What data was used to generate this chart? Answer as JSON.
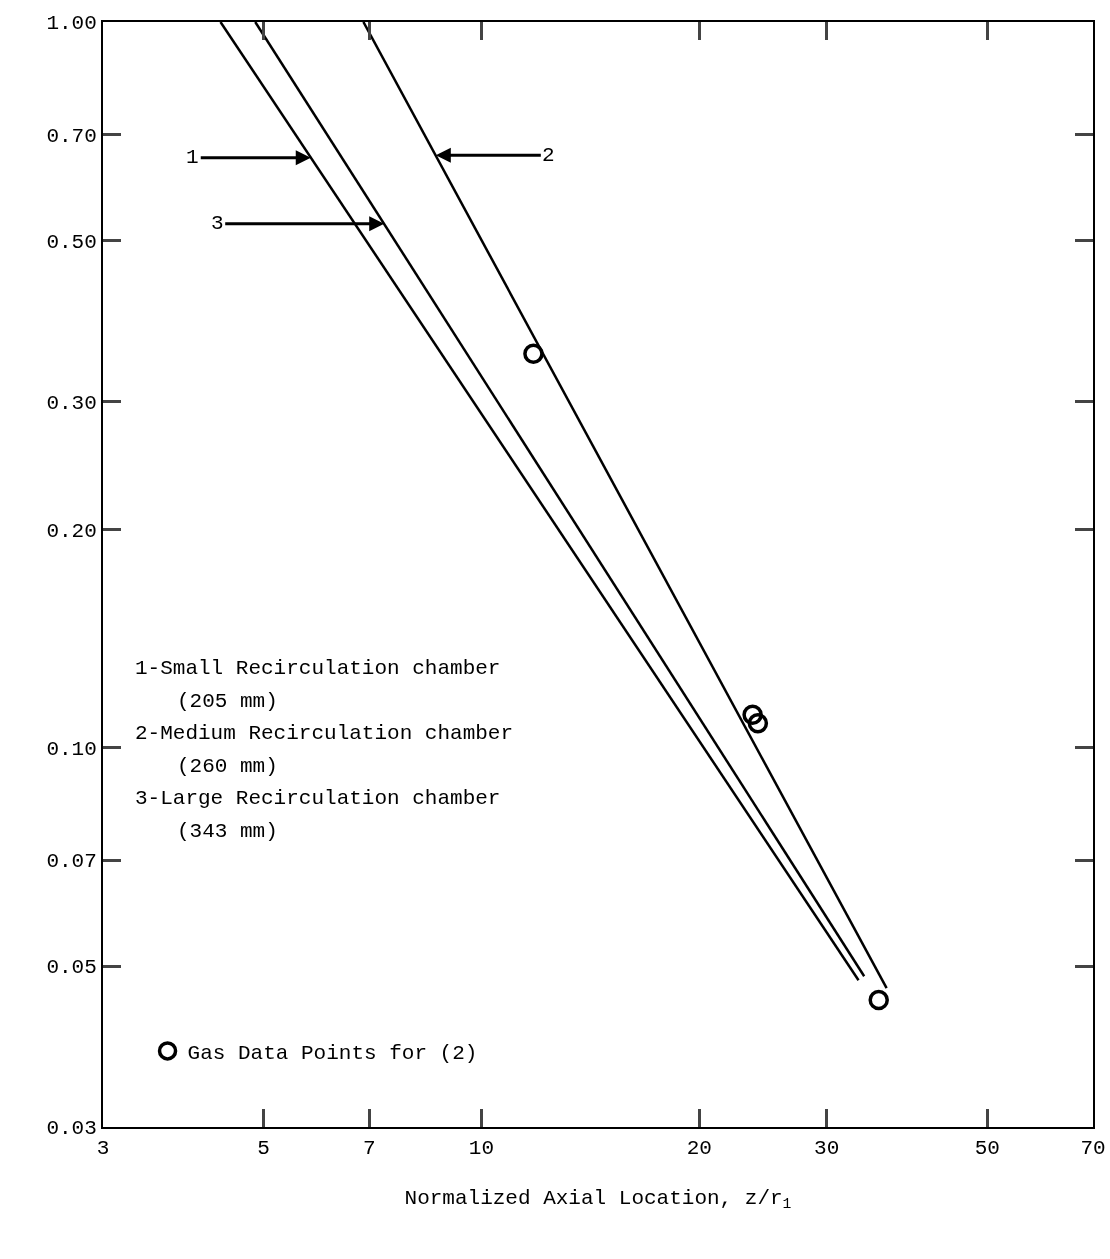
{
  "chart_data": {
    "type": "line",
    "xlabel": "Normalized Axial Location, z/r$_{1}$",
    "log": "xy",
    "grid": false,
    "legend": "bottom left",
    "xlim": [
      3,
      70
    ],
    "xticks": [
      3,
      5,
      7,
      10,
      20,
      30,
      50,
      70
    ],
    "ylim": [
      0.03,
      1
    ],
    "yticks": [
      0.03,
      0.05,
      0.07,
      {
        "value": 0.1,
        "label": "0.10"
      },
      {
        "value": 0.2,
        "label": "0.20"
      },
      {
        "value": 0.3,
        "label": "0.30"
      },
      {
        "value": 0.5,
        "label": "0.50"
      },
      {
        "value": 0.7,
        "label": "0.70"
      },
      {
        "value": 1,
        "label": "1.00"
      }
    ],
    "series": [
      {
        "type": "line",
        "color": "#000000",
        "line_style": "solid",
        "x": [
          4.36,
          33.2
        ],
        "values": [
          1,
          0.0478
        ]
      },
      {
        "type": "line",
        "color": "#000000",
        "line_style": "solid",
        "x": [
          6.87,
          36.3
        ],
        "values": [
          1,
          0.0466
        ]
      },
      {
        "type": "line",
        "color": "#000000",
        "line_style": "solid",
        "x": [
          4.87,
          33.8
        ],
        "values": [
          1,
          0.0484
        ]
      },
      {
        "type": "scatter",
        "name": "Gas Data Points for (2)",
        "color": "#000000",
        "marker": "circle",
        "x": [
          11.8,
          23.7,
          24.1,
          35.4
        ],
        "values": [
          0.349,
          0.111,
          0.108,
          0.0449
        ]
      }
    ],
    "annotations": [
      {
        "text": "1",
        "x": 5.81,
        "y": 0.65
      },
      {
        "text": "2",
        "x": 8.65,
        "y": 0.655
      },
      {
        "text": "3",
        "x": 7.34,
        "y": 0.527
      },
      "1-Small Recirculation chamber",
      "(205 mm)",
      "2-Medium Recirculation chamber",
      "(260 mm)",
      "3-Large Recirculation chamber",
      "(343 mm)"
    ]
  }
}
